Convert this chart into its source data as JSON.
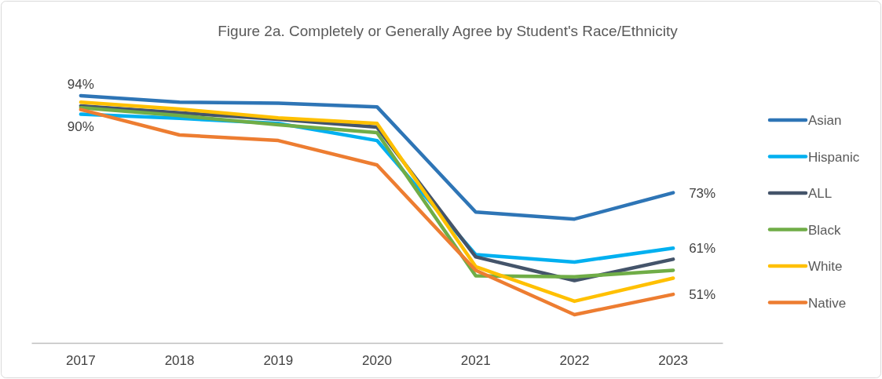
{
  "chart_data": {
    "type": "line",
    "title": "Figure 2a. Completely or Generally Agree by Student's Race/Ethnicity",
    "categories": [
      "2017",
      "2018",
      "2019",
      "2020",
      "2021",
      "2022",
      "2023"
    ],
    "tick_labels": "x",
    "legend": "right",
    "marker": "none",
    "line_style": "solid",
    "series": [
      {
        "name": "Asian",
        "color": "#2e75b6",
        "values": [
          94,
          92.6,
          92.4,
          91.6,
          68.8,
          67.3,
          73
        ],
        "value_labels": [
          "94%",
          null,
          null,
          null,
          null,
          null,
          "73%"
        ]
      },
      {
        "name": "Hispanic",
        "color": "#00b0f0",
        "values": [
          90,
          89.1,
          88,
          84.3,
          59.6,
          58,
          61
        ],
        "value_labels": [
          "90%",
          null,
          null,
          null,
          null,
          null,
          "61%"
        ]
      },
      {
        "name": "ALL",
        "color": "#44546a",
        "values": [
          91.8,
          90.3,
          88.9,
          87.2,
          59.1,
          54,
          58.6
        ]
      },
      {
        "name": "Black",
        "color": "#70ad47",
        "values": [
          91.4,
          89.7,
          87.7,
          86,
          55,
          54.8,
          56.2
        ]
      },
      {
        "name": "White",
        "color": "#ffc000",
        "values": [
          92.6,
          91.1,
          89.2,
          88,
          57,
          49.5,
          54.5
        ]
      },
      {
        "name": "Native",
        "color": "#ed7d31",
        "values": [
          91,
          85.5,
          84.3,
          79,
          56.2,
          46.6,
          51
        ],
        "value_labels": [
          null,
          null,
          null,
          null,
          null,
          null,
          "51%"
        ]
      }
    ]
  }
}
